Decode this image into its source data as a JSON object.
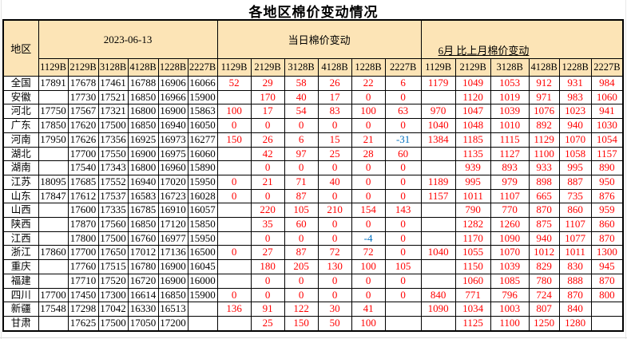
{
  "title": "各地区棉价变动情况",
  "colors": {
    "header_bg": "#FCE4B6",
    "change_positive": "#FF0000",
    "change_negative": "#0070C0",
    "border": "#000000",
    "background": "#FFFFFF"
  },
  "table": {
    "region_header": "地区",
    "sections": [
      {
        "label": "2023-06-13",
        "columns": [
          "1129B",
          "2129B",
          "3128B",
          "4128B",
          "1228B",
          "2227B"
        ]
      },
      {
        "label": "当日棉价变动",
        "columns": [
          "1129B",
          "2129B",
          "3128B",
          "4128B",
          "1228B",
          "2227B"
        ]
      },
      {
        "label": "6月 比上月棉价变动",
        "columns": [
          "1129B",
          "2129B",
          "3128B",
          "4128B",
          "1228B",
          "2227B"
        ]
      }
    ],
    "rows": [
      {
        "region": "全国",
        "cells": [
          "17891",
          "17678",
          "17461",
          "16788",
          "16906",
          "16066",
          "52",
          "29",
          "58",
          "26",
          "22",
          "6",
          "1179",
          "1049",
          "1053",
          "912",
          "931",
          "984"
        ]
      },
      {
        "region": "安徽",
        "cells": [
          "",
          "17730",
          "17521",
          "16850",
          "16966",
          "15900",
          "",
          "170",
          "40",
          "17",
          "0",
          "0",
          "",
          "1120",
          "1019",
          "971",
          "983",
          "1060"
        ]
      },
      {
        "region": "河北",
        "cells": [
          "17750",
          "17567",
          "17321",
          "16800",
          "16900",
          "15863",
          "100",
          "17",
          "54",
          "83",
          "100",
          "63",
          "970",
          "1047",
          "1039",
          "1076",
          "1023",
          "941"
        ]
      },
      {
        "region": "广东",
        "cells": [
          "17850",
          "17620",
          "17500",
          "16850",
          "16940",
          "16050",
          "0",
          "0",
          "0",
          "0",
          "0",
          "0",
          "1040",
          "1048",
          "1010",
          "892",
          "940",
          "1030"
        ]
      },
      {
        "region": "河南",
        "cells": [
          "17950",
          "17626",
          "17356",
          "16925",
          "16973",
          "16277",
          "150",
          "26",
          "6",
          "15",
          "21",
          "-31",
          "1384",
          "1185",
          "1115",
          "1129",
          "1070",
          "1054"
        ]
      },
      {
        "region": "湖北",
        "cells": [
          "",
          "17700",
          "17550",
          "16900",
          "16975",
          "16060",
          "",
          "42",
          "97",
          "25",
          "28",
          "60",
          "",
          "1135",
          "1127",
          "1100",
          "1058",
          "1157"
        ]
      },
      {
        "region": "湖南",
        "cells": [
          "",
          "17540",
          "17343",
          "16800",
          "16960",
          "15890",
          "",
          "0",
          "0",
          "0",
          "0",
          "0",
          "",
          "939",
          "893",
          "933",
          "995",
          "890"
        ]
      },
      {
        "region": "江苏",
        "cells": [
          "18095",
          "17685",
          "17552",
          "16940",
          "17020",
          "15950",
          "0",
          "21",
          "71",
          "40",
          "0",
          "0",
          "1189",
          "995",
          "979",
          "898",
          "887",
          "950"
        ]
      },
      {
        "region": "山东",
        "cells": [
          "17847",
          "17612",
          "17537",
          "16583",
          "16723",
          "16028",
          "0",
          "0",
          "87",
          "0",
          "0",
          "0",
          "1157",
          "1011",
          "1107",
          "665",
          "735",
          "876"
        ]
      },
      {
        "region": "山西",
        "cells": [
          "",
          "17600",
          "17335",
          "16785",
          "16910",
          "16057",
          "",
          "220",
          "105",
          "210",
          "154",
          "143",
          "",
          "790",
          "770",
          "870",
          "860",
          "959"
        ]
      },
      {
        "region": "陕西",
        "cells": [
          "",
          "17870",
          "17560",
          "16850",
          "17120",
          "15850",
          "",
          "35",
          "60",
          "0",
          "0",
          "0",
          "",
          "1282",
          "1260",
          "875",
          "1107",
          "860"
        ]
      },
      {
        "region": "江西",
        "cells": [
          "",
          "17800",
          "17500",
          "16760",
          "16977",
          "15950",
          "",
          "0",
          "0",
          "0",
          "-4",
          "0",
          "",
          "1170",
          "1090",
          "940",
          "1077",
          "870"
        ]
      },
      {
        "region": "浙江",
        "cells": [
          "17860",
          "17700",
          "17650",
          "17012",
          "17136",
          "16500",
          "0",
          "27",
          "87",
          "72",
          "72",
          "0",
          "1040",
          "1055",
          "1070",
          "1012",
          "1011",
          "1300"
        ]
      },
      {
        "region": "重庆",
        "cells": [
          "",
          "17760",
          "17515",
          "16780",
          "16900",
          "16045",
          "",
          "180",
          "205",
          "130",
          "100",
          "105",
          "",
          "1150",
          "1039",
          "829",
          "830",
          "945"
        ]
      },
      {
        "region": "福建",
        "cells": [
          "",
          "17710",
          "17520",
          "16720",
          "16900",
          "16000",
          "",
          "0",
          "0",
          "0",
          "0",
          "0",
          "",
          "1060",
          "1085",
          "780",
          "888",
          "870"
        ]
      },
      {
        "region": "四川",
        "cells": [
          "17700",
          "17450",
          "17300",
          "16614",
          "16850",
          "15900",
          "0",
          "0",
          "0",
          "0",
          "0",
          "0",
          "840",
          "771",
          "796",
          "724",
          "870",
          "800"
        ]
      },
      {
        "region": "新疆",
        "cells": [
          "17548",
          "17298",
          "17042",
          "16330",
          "16513",
          "",
          "136",
          "91",
          "122",
          "30",
          "41",
          "",
          "1090",
          "1034",
          "1003",
          "807",
          "840",
          ""
        ]
      },
      {
        "region": "甘肃",
        "cells": [
          "",
          "17625",
          "17500",
          "17050",
          "17200",
          "",
          "",
          "25",
          "150",
          "50",
          "100",
          "",
          "",
          "1125",
          "1100",
          "1250",
          "1280",
          ""
        ]
      }
    ]
  }
}
